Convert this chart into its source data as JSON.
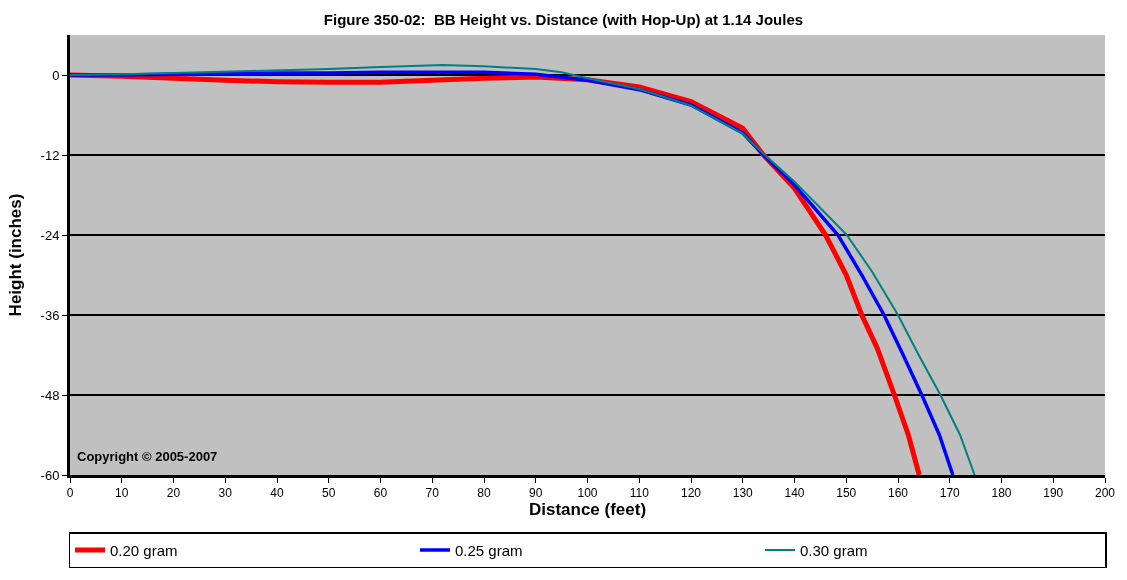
{
  "chart_data": {
    "type": "line",
    "title": "Figure 350-02:  BB Height vs. Distance (with Hop-Up) at 1.14 Joules",
    "xlabel": "Distance (feet)",
    "ylabel": "Height (inches)",
    "xlim": [
      0,
      200
    ],
    "xticks": [
      0,
      10,
      20,
      30,
      40,
      50,
      60,
      70,
      80,
      90,
      100,
      110,
      120,
      130,
      140,
      150,
      160,
      170,
      180,
      190,
      200
    ],
    "ylim": [
      -60,
      6
    ],
    "yticks": [
      0,
      -12,
      -24,
      -36,
      -48,
      -60
    ],
    "grid": "y",
    "legend": "bottom",
    "marker": "none",
    "line_style": "solid",
    "annotations": [
      "Copyright © 2005-2007"
    ],
    "series": [
      {
        "name": "0.20 gram",
        "color": "#ff0000",
        "x": [
          0,
          10,
          20,
          30,
          40,
          50,
          60,
          70,
          80,
          90,
          100,
          110,
          120,
          130,
          134,
          140,
          146,
          150,
          153,
          156,
          159.3,
          162,
          164.1
        ],
        "values": [
          0,
          -0.2,
          -0.5,
          -0.8,
          -1.0,
          -1.1,
          -1.1,
          -0.8,
          -0.5,
          -0.3,
          -0.7,
          -1.8,
          -4.0,
          -8.0,
          -12,
          -17,
          -24,
          -30,
          -36,
          -41,
          -48,
          -54,
          -60
        ]
      },
      {
        "name": "0.25 gram",
        "color": "#0000ff",
        "x": [
          0,
          10,
          20,
          30,
          40,
          50,
          60,
          70,
          80,
          90,
          100,
          110,
          120,
          130,
          134,
          140,
          148.4,
          153,
          157.3,
          161,
          164.6,
          168,
          170.6
        ],
        "values": [
          0,
          0,
          0.1,
          0.2,
          0.3,
          0.3,
          0.4,
          0.4,
          0.4,
          0.1,
          -0.8,
          -2.2,
          -4.5,
          -8.7,
          -12,
          -16.5,
          -24,
          -30,
          -36,
          -42,
          -48,
          -54,
          -60
        ]
      },
      {
        "name": "0.30 gram",
        "color": "#008080",
        "x": [
          0,
          10,
          20,
          35,
          50,
          60,
          72,
          80,
          90,
          95,
          100,
          110,
          120,
          130,
          134,
          140,
          150.1,
          155,
          160,
          164,
          168.2,
          172,
          174.8
        ],
        "values": [
          0,
          0.1,
          0.3,
          0.6,
          0.9,
          1.2,
          1.5,
          1.3,
          0.9,
          0.4,
          -0.5,
          -2.1,
          -4.6,
          -8.8,
          -11.8,
          -16,
          -24,
          -29.5,
          -36,
          -42,
          -48,
          -54,
          -60
        ]
      }
    ]
  }
}
